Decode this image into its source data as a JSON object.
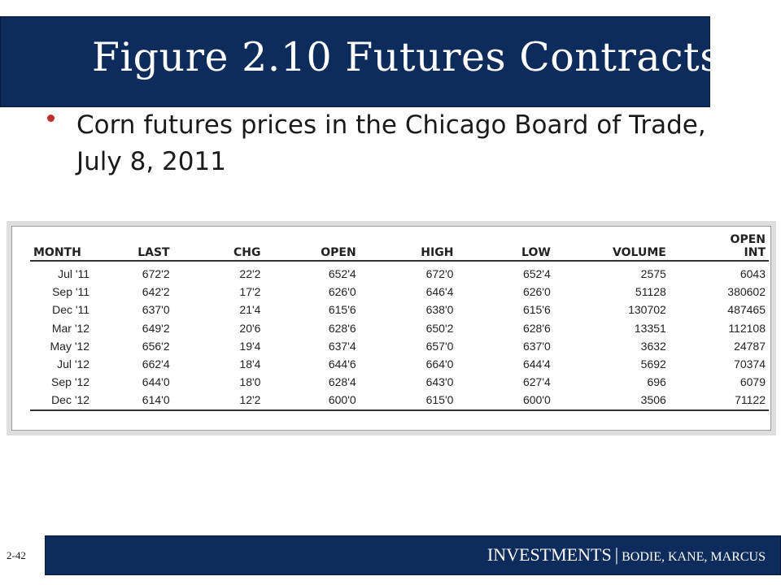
{
  "slide": {
    "title": "Figure 2.10 Futures Contracts",
    "bullet": "Corn futures prices in the Chicago Board of Trade, July 8, 2011",
    "page_number": "2-42",
    "footer_title": "INVESTMENTS",
    "footer_separator": "|",
    "footer_authors": "BODIE, KANE, MARCUS",
    "colors": {
      "title_bar": "#0d2c5c",
      "bullet": "#c0302a",
      "text": "#1a1a1a"
    }
  },
  "table": {
    "headers": [
      "MONTH",
      "LAST",
      "CHG",
      "OPEN",
      "HIGH",
      "LOW",
      "VOLUME",
      "OPEN INT"
    ],
    "rows": [
      [
        "Jul '11",
        "672'2",
        "22'2",
        "652'4",
        "672'0",
        "652'4",
        "2575",
        "6043"
      ],
      [
        "Sep '11",
        "642'2",
        "17'2",
        "626'0",
        "646'4",
        "626'0",
        "51128",
        "380602"
      ],
      [
        "Dec '11",
        "637'0",
        "21'4",
        "615'6",
        "638'0",
        "615'6",
        "130702",
        "487465"
      ],
      [
        "Mar '12",
        "649'2",
        "20'6",
        "628'6",
        "650'2",
        "628'6",
        "13351",
        "112108"
      ],
      [
        "May '12",
        "656'2",
        "19'4",
        "637'4",
        "657'0",
        "637'0",
        "3632",
        "24787"
      ],
      [
        "Jul '12",
        "662'4",
        "18'4",
        "644'6",
        "664'0",
        "644'4",
        "5692",
        "70374"
      ],
      [
        "Sep '12",
        "644'0",
        "18'0",
        "628'4",
        "643'0",
        "627'4",
        "696",
        "6079"
      ],
      [
        "Dec '12",
        "614'0",
        "12'2",
        "600'0",
        "615'0",
        "600'0",
        "3506",
        "71122"
      ]
    ]
  }
}
